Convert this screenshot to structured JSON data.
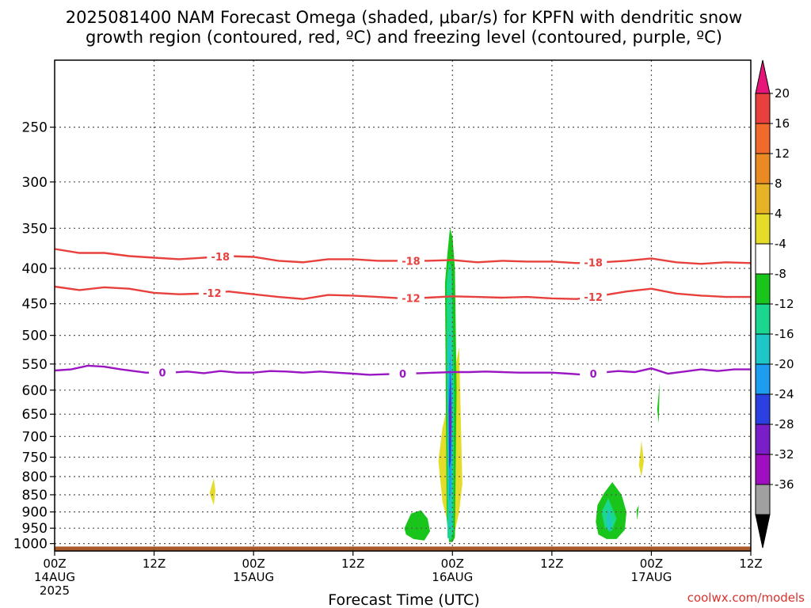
{
  "chart_data": {
    "type": "time-height cross section",
    "title_lines": [
      "2025081400 NAM Forecast Omega (shaded, μbar/s) for KPFN with dendritic snow",
      "growth region (contoured, red, ºC) and freezing level (contoured, purple, ºC)"
    ],
    "xlabel": "Forecast Time (UTC)",
    "credit": "coolwx.com/models",
    "x_unit": "hours since 2025-08-14 00Z",
    "x_range": [
      0,
      84
    ],
    "x_ticks": [
      {
        "hour": 0,
        "lines": [
          "00Z",
          "14AUG",
          "2025"
        ]
      },
      {
        "hour": 12,
        "lines": [
          "12Z"
        ]
      },
      {
        "hour": 24,
        "lines": [
          "00Z",
          "15AUG"
        ]
      },
      {
        "hour": 36,
        "lines": [
          "12Z"
        ]
      },
      {
        "hour": 48,
        "lines": [
          "00Z",
          "16AUG"
        ]
      },
      {
        "hour": 60,
        "lines": [
          "12Z"
        ]
      },
      {
        "hour": 72,
        "lines": [
          "00Z",
          "17AUG"
        ]
      },
      {
        "hour": 84,
        "lines": [
          "12Z"
        ]
      }
    ],
    "y_unit": "hPa",
    "y_scale": "log, inverted",
    "y_range": [
      1025,
      200
    ],
    "y_ticks": [
      250,
      300,
      350,
      400,
      450,
      500,
      550,
      600,
      650,
      700,
      750,
      800,
      850,
      900,
      950,
      1000
    ],
    "grid": true,
    "contours": [
      {
        "level": -18,
        "color": "#e8403c",
        "label": "-18",
        "label_at_hours": [
          20,
          43,
          65
        ],
        "points": [
          [
            0,
            375
          ],
          [
            3,
            380
          ],
          [
            6,
            380
          ],
          [
            9,
            384
          ],
          [
            12,
            386
          ],
          [
            15,
            388
          ],
          [
            18,
            386
          ],
          [
            21,
            384
          ],
          [
            24,
            385
          ],
          [
            27,
            390
          ],
          [
            30,
            392
          ],
          [
            33,
            388
          ],
          [
            36,
            388
          ],
          [
            39,
            390
          ],
          [
            42,
            390
          ],
          [
            45,
            390
          ],
          [
            48,
            389
          ],
          [
            51,
            392
          ],
          [
            54,
            390
          ],
          [
            57,
            391
          ],
          [
            60,
            391
          ],
          [
            63,
            393
          ],
          [
            66,
            392
          ],
          [
            69,
            390
          ],
          [
            72,
            387
          ],
          [
            75,
            392
          ],
          [
            78,
            394
          ],
          [
            81,
            392
          ],
          [
            84,
            393
          ]
        ]
      },
      {
        "level": -12,
        "color": "#e8403c",
        "label": "-12",
        "label_at_hours": [
          19,
          43,
          65
        ],
        "points": [
          [
            0,
            425
          ],
          [
            3,
            430
          ],
          [
            6,
            426
          ],
          [
            9,
            428
          ],
          [
            12,
            434
          ],
          [
            15,
            436
          ],
          [
            18,
            435
          ],
          [
            21,
            432
          ],
          [
            24,
            436
          ],
          [
            27,
            440
          ],
          [
            30,
            443
          ],
          [
            33,
            437
          ],
          [
            36,
            438
          ],
          [
            39,
            440
          ],
          [
            42,
            442
          ],
          [
            45,
            441
          ],
          [
            48,
            439
          ],
          [
            51,
            440
          ],
          [
            54,
            441
          ],
          [
            57,
            440
          ],
          [
            60,
            442
          ],
          [
            63,
            443
          ],
          [
            66,
            438
          ],
          [
            69,
            432
          ],
          [
            72,
            428
          ],
          [
            75,
            435
          ],
          [
            78,
            438
          ],
          [
            81,
            440
          ],
          [
            84,
            440
          ]
        ]
      },
      {
        "level": 0,
        "color": "#9a16c2",
        "label": "0",
        "label_at_hours": [
          13,
          42,
          65
        ],
        "points": [
          [
            0,
            562
          ],
          [
            2,
            560
          ],
          [
            4,
            553
          ],
          [
            6,
            555
          ],
          [
            8,
            560
          ],
          [
            11,
            566
          ],
          [
            14,
            566
          ],
          [
            16,
            564
          ],
          [
            18,
            567
          ],
          [
            20,
            563
          ],
          [
            22,
            566
          ],
          [
            24,
            566
          ],
          [
            26,
            563
          ],
          [
            28,
            564
          ],
          [
            30,
            566
          ],
          [
            32,
            564
          ],
          [
            34,
            566
          ],
          [
            36,
            568
          ],
          [
            38,
            570
          ],
          [
            40,
            569
          ],
          [
            42,
            568
          ],
          [
            44,
            567
          ],
          [
            46,
            566
          ],
          [
            48,
            565
          ],
          [
            50,
            565
          ],
          [
            52,
            564
          ],
          [
            54,
            565
          ],
          [
            56,
            566
          ],
          [
            58,
            566
          ],
          [
            60,
            566
          ],
          [
            62,
            568
          ],
          [
            64,
            570
          ],
          [
            66,
            566
          ],
          [
            68,
            563
          ],
          [
            70,
            565
          ],
          [
            72,
            558
          ],
          [
            74,
            568
          ],
          [
            76,
            564
          ],
          [
            78,
            560
          ],
          [
            80,
            563
          ],
          [
            82,
            560
          ],
          [
            84,
            560
          ]
        ]
      }
    ],
    "omega_areas": [
      {
        "value": 6,
        "color": "#e5dc2a",
        "x": [
          46.3,
          46.8,
          47.3,
          47.8,
          48.3,
          48.8,
          49.2,
          48.8,
          48.3,
          47.8,
          47.3,
          46.8,
          46.3
        ],
        "y": [
          760,
          680,
          640,
          580,
          560,
          520,
          820,
          900,
          960,
          980,
          920,
          870,
          760
        ]
      },
      {
        "value": 6,
        "color": "#e5dc2a",
        "x": [
          18.7,
          19.2,
          19.4,
          19.2,
          18.9,
          18.7
        ],
        "y": [
          845,
          805,
          840,
          880,
          860,
          845
        ]
      },
      {
        "value": 6,
        "color": "#e5dc2a",
        "x": [
          70.5,
          70.8,
          71.1,
          70.8,
          70.5
        ],
        "y": [
          770,
          710,
          760,
          800,
          770
        ]
      },
      {
        "value": -6,
        "color": "#19c51b",
        "x": [
          42.2,
          43.0,
          44.2,
          45.0,
          45.3,
          44.6,
          43.3,
          42.4,
          42.2
        ],
        "y": [
          950,
          905,
          895,
          920,
          960,
          990,
          985,
          970,
          950
        ]
      },
      {
        "value": -6,
        "color": "#19c51b",
        "x": [
          47.1,
          47.4,
          47.7,
          48.0,
          48.3,
          48.5,
          48.3,
          48.0,
          47.6,
          47.3,
          47.1
        ],
        "y": [
          420,
          380,
          350,
          360,
          400,
          600,
          980,
          995,
          995,
          920,
          420
        ]
      },
      {
        "value": -6,
        "color": "#19c51b",
        "x": [
          65.5,
          66.3,
          67.3,
          68.4,
          69.0,
          68.8,
          67.8,
          66.6,
          65.6,
          65.3,
          65.5
        ],
        "y": [
          880,
          845,
          815,
          850,
          900,
          955,
          985,
          985,
          970,
          930,
          880
        ]
      },
      {
        "value": -6,
        "color": "#19c51b",
        "x": [
          72.7,
          73.0,
          72.9,
          72.7
        ],
        "y": [
          640,
          585,
          670,
          640
        ]
      },
      {
        "value": -6,
        "color": "#19c51b",
        "x": [
          70.2,
          70.5,
          70.3,
          70.2
        ],
        "y": [
          895,
          880,
          925,
          895
        ]
      },
      {
        "value": -10,
        "color": "#1ad68f",
        "x": [
          47.3,
          47.6,
          47.9,
          48.2,
          48.1,
          47.8,
          47.4,
          47.3
        ],
        "y": [
          420,
          390,
          400,
          600,
          960,
          990,
          980,
          420
        ]
      },
      {
        "value": -10,
        "color": "#1ad68f",
        "x": [
          66.0,
          66.8,
          67.8,
          67.2,
          66.4,
          66.0
        ],
        "y": [
          900,
          860,
          920,
          960,
          950,
          900
        ]
      },
      {
        "value": -14,
        "color": "#1fc6c6",
        "x": [
          47.4,
          47.7,
          48.0,
          47.9,
          47.6,
          47.4
        ],
        "y": [
          520,
          490,
          560,
          940,
          960,
          520
        ]
      },
      {
        "value": -14,
        "color": "#1fc6c6",
        "x": [
          66.6,
          66.9,
          67.2,
          66.9,
          66.6
        ],
        "y": [
          920,
          890,
          940,
          965,
          920
        ]
      },
      {
        "value": -18,
        "color": "#1d9df0",
        "x": [
          47.5,
          47.75,
          47.95,
          47.85,
          47.6,
          47.5
        ],
        "y": [
          600,
          530,
          620,
          840,
          870,
          600
        ]
      },
      {
        "value": -22,
        "color": "#2b40e0",
        "x": [
          47.55,
          47.78,
          47.9,
          47.8,
          47.6,
          47.55
        ],
        "y": [
          640,
          560,
          660,
          760,
          780,
          640
        ]
      },
      {
        "value": -26,
        "color": "#7a1ec9",
        "x": [
          47.62,
          47.8,
          47.85,
          47.72,
          47.62
        ],
        "y": [
          650,
          610,
          690,
          720,
          650
        ]
      },
      {
        "value": "terrain",
        "color": "#a9582a",
        "x": [
          0,
          84,
          84,
          0
        ],
        "y": [
          1010,
          1010,
          1025,
          1025
        ]
      }
    ],
    "colorbar": {
      "labels": [
        "20",
        "16",
        "12",
        "8",
        "4",
        "-4",
        "-8",
        "-12",
        "-16",
        "-20",
        "-24",
        "-28",
        "-32",
        "-36"
      ],
      "top_arrow_color": "#e7157a",
      "bottom_arrow_color": "#000000",
      "bands_top_to_bottom": [
        "#e8403c",
        "#f06a2c",
        "#ea8a22",
        "#e6b226",
        "#e5dc2a",
        "#ffffff",
        "#19c51b",
        "#1ad68f",
        "#1fc6c6",
        "#1d9df0",
        "#2b40e0",
        "#7a1ec9",
        "#a00fbf",
        "#a0a0a0"
      ]
    }
  }
}
